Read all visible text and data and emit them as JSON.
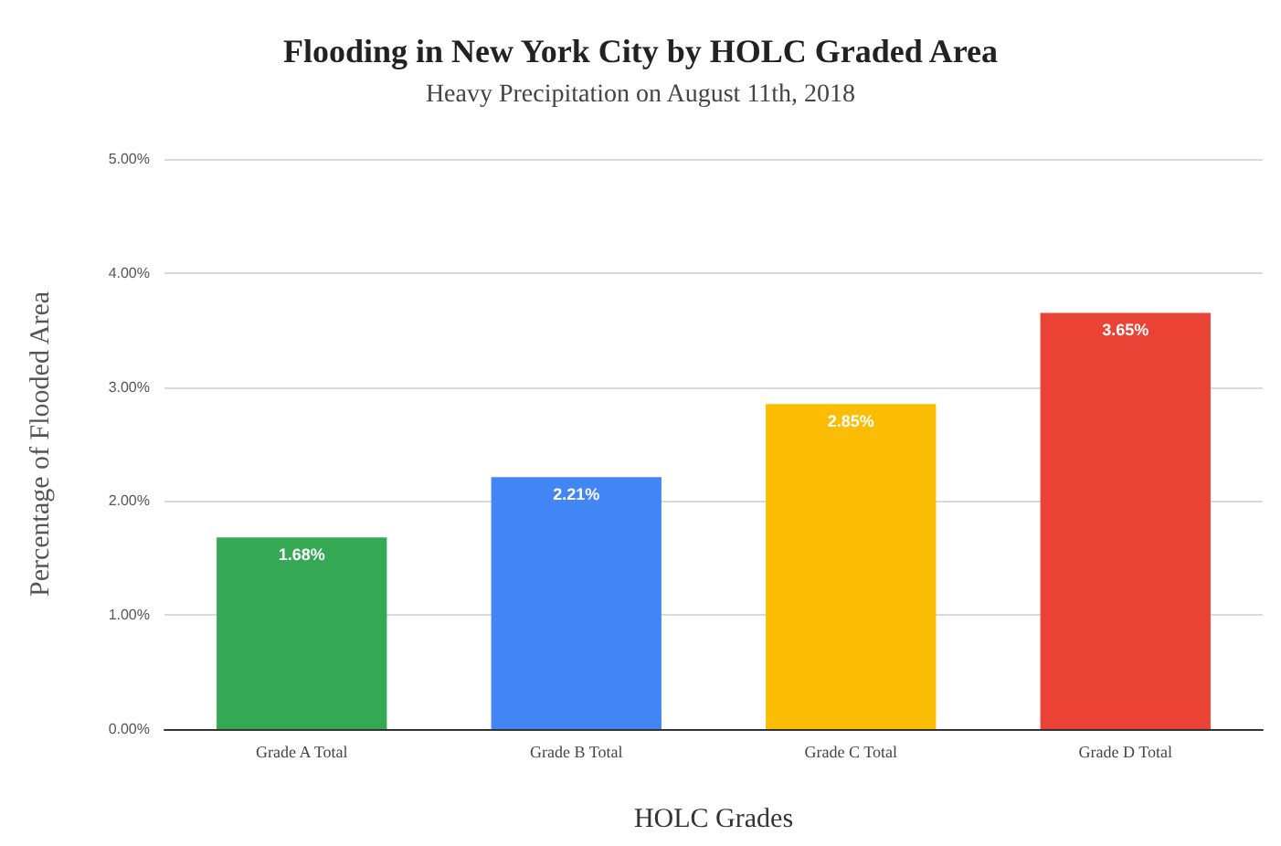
{
  "chart_data": {
    "type": "bar",
    "title": "Flooding in New York City by HOLC Graded Area",
    "subtitle": "Heavy Precipitation on August 11th, 2018",
    "xlabel": "HOLC Grades",
    "ylabel": "Percentage of Flooded Area",
    "categories": [
      "Grade A Total",
      "Grade B Total",
      "Grade C Total",
      "Grade D Total"
    ],
    "values": [
      1.68,
      2.21,
      2.85,
      3.65
    ],
    "colors": [
      "#34a853",
      "#4285f4",
      "#fbbc04",
      "#ea4335"
    ],
    "value_labels": [
      "1.68%",
      "2.21%",
      "2.85%",
      "3.65%"
    ],
    "ylim": [
      0,
      5
    ],
    "yticks": [
      {
        "value": 0,
        "label": "0.00%"
      },
      {
        "value": 1,
        "label": "1.00%"
      },
      {
        "value": 2,
        "label": "2.00%"
      },
      {
        "value": 3,
        "label": "3.00%"
      },
      {
        "value": 4,
        "label": "4.00%"
      },
      {
        "value": 5,
        "label": "5.00%"
      }
    ],
    "grid": "y"
  }
}
